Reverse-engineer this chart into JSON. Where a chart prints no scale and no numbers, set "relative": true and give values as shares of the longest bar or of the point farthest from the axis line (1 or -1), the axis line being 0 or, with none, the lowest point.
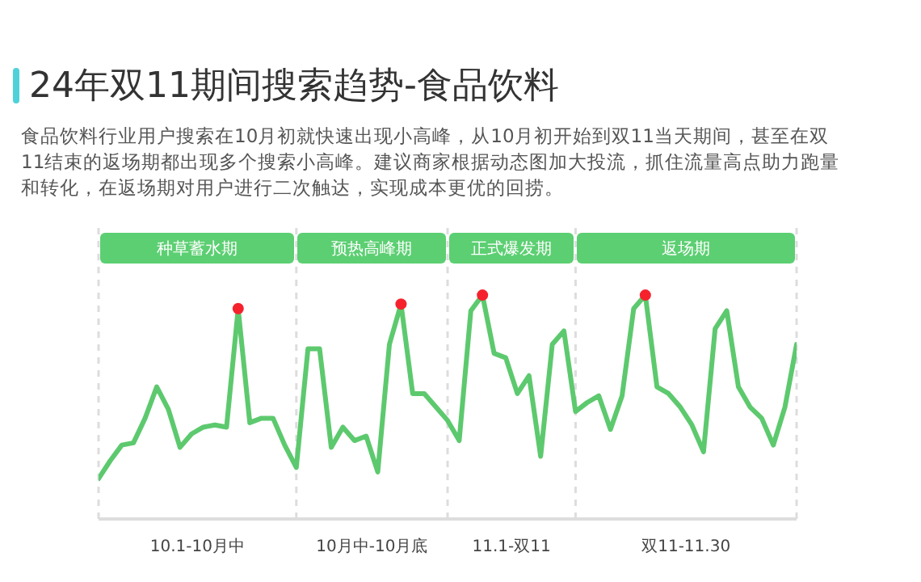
{
  "chart_data": {
    "type": "line",
    "title": "24年双11期间搜索趋势-食品饮料",
    "subtitle": "食品饮料行业用户搜索在10月初就快速出现小高峰，从10月初开始到双11当天期间，甚至在双11结束的返场期都出现多个搜索小高峰。建议商家根据动态图加大投流，抓住流量高点助力跑量和转化，在返场期对用户进行二次触达，实现成本更优的回捞。",
    "relative": true,
    "categories": [
      null,
      null,
      null,
      null,
      null,
      null,
      null,
      null,
      null,
      null,
      null,
      null,
      null,
      null,
      null,
      null,
      null,
      null,
      null,
      null,
      null,
      null,
      null,
      null,
      null,
      null,
      null,
      null,
      null,
      null,
      null,
      null,
      null,
      null,
      null,
      null,
      null,
      null,
      null,
      null,
      null,
      null,
      null,
      null,
      null,
      null,
      null,
      null,
      null,
      null,
      null,
      null,
      null,
      null,
      null,
      null,
      null,
      null,
      null,
      null,
      null
    ],
    "line_style": "solid",
    "marker": "none",
    "grid": "x",
    "series": [
      {
        "color": "#5dc96e",
        "values": [
          0.18,
          0.26,
          0.33,
          0.34,
          0.45,
          0.59,
          0.49,
          0.32,
          0.38,
          0.41,
          0.42,
          0.41,
          0.94,
          0.43,
          0.45,
          0.45,
          0.33,
          0.23,
          0.76,
          0.76,
          0.32,
          0.41,
          0.35,
          0.37,
          0.21,
          0.78,
          0.96,
          0.56,
          0.56,
          0.5,
          0.44,
          0.35,
          0.93,
          1.0,
          0.74,
          0.72,
          0.56,
          0.64,
          0.28,
          0.78,
          0.84,
          0.48,
          0.52,
          0.55,
          0.4,
          0.55,
          0.94,
          1.0,
          0.59,
          0.56,
          0.5,
          0.42,
          0.3,
          0.85,
          0.93,
          0.59,
          0.5,
          0.45,
          0.33,
          0.5,
          0.78
        ]
      }
    ],
    "annotations": [
      "种草蓄水期",
      "预热高峰期",
      "正式爆发期",
      "返场期",
      "10.1-10月中",
      "10月中-10月底",
      "11.1-双11",
      "双11-11.30"
    ]
  }
}
